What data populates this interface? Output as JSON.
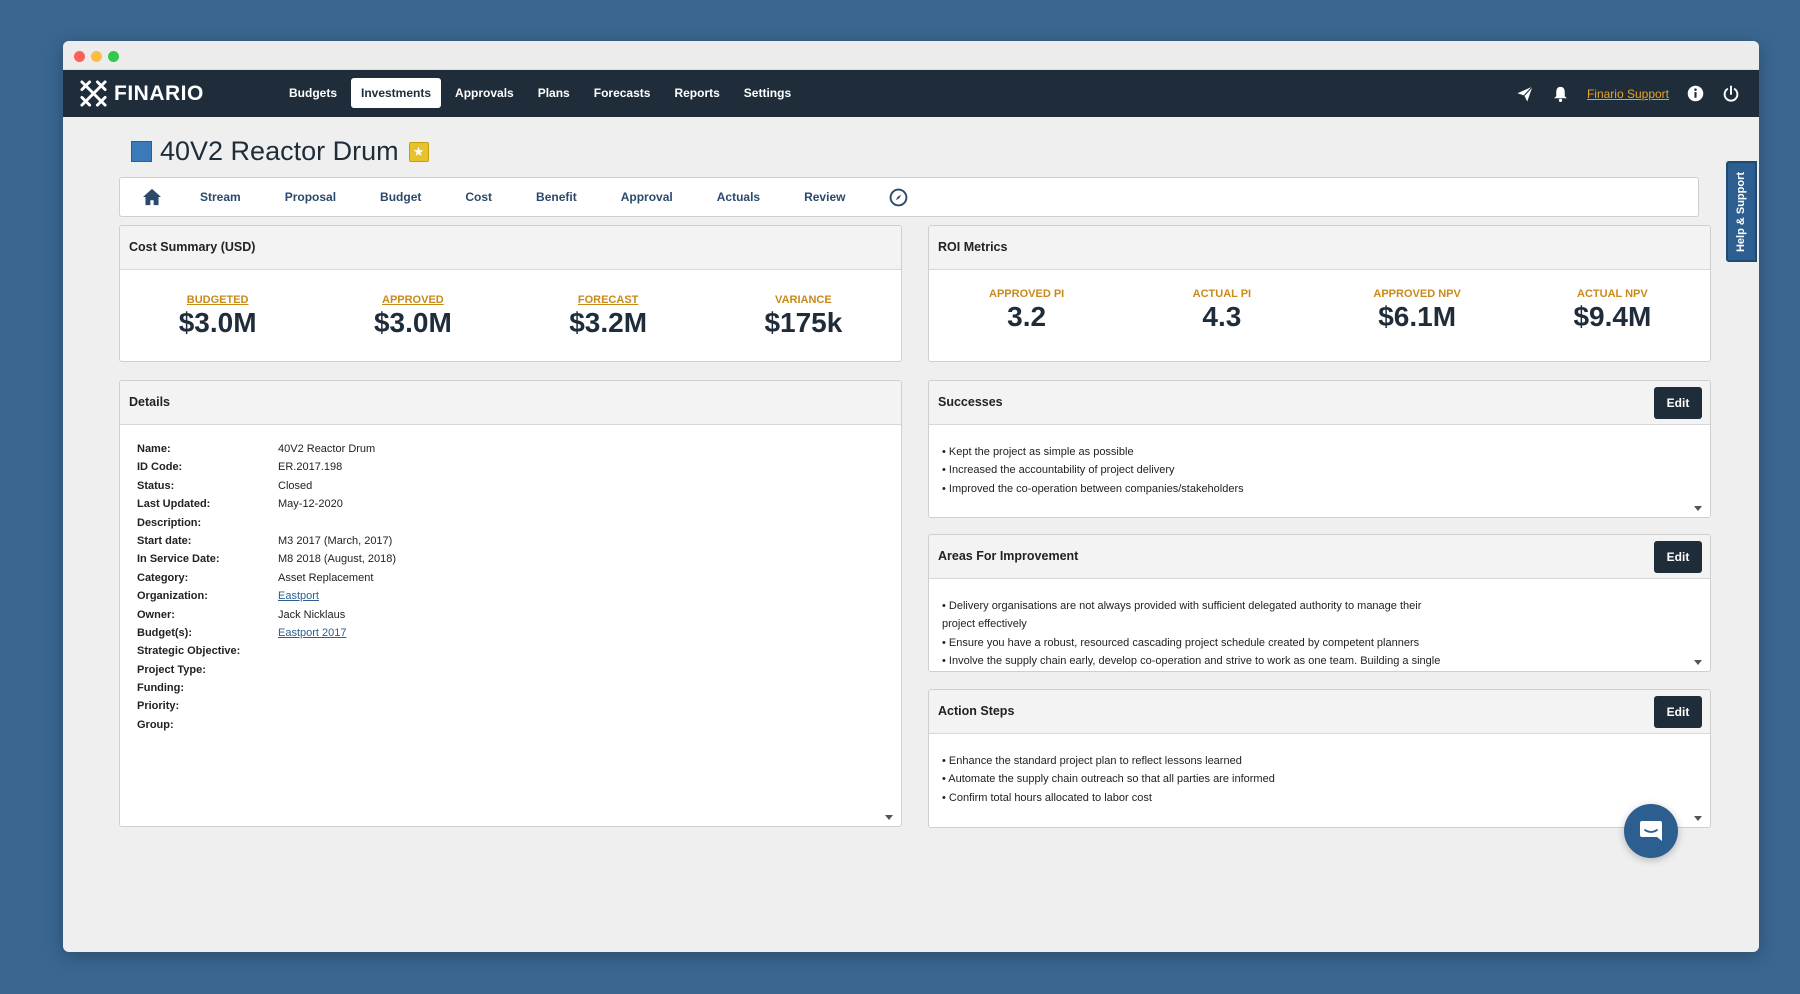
{
  "app": {
    "logo_text": "FINARIO"
  },
  "nav": {
    "items": [
      {
        "label": "Budgets"
      },
      {
        "label": "Investments",
        "active": true
      },
      {
        "label": "Approvals"
      },
      {
        "label": "Plans"
      },
      {
        "label": "Forecasts"
      },
      {
        "label": "Reports"
      },
      {
        "label": "Settings"
      }
    ],
    "support_label": "Finario Support",
    "icons": [
      "send-icon",
      "bell-icon",
      "info-icon",
      "power-icon"
    ]
  },
  "page": {
    "title": "40V2 Reactor Drum"
  },
  "subtabs": [
    "Stream",
    "Proposal",
    "Budget",
    "Cost",
    "Benefit",
    "Approval",
    "Actuals",
    "Review"
  ],
  "cost_summary": {
    "title": "Cost Summary (USD)",
    "metrics": [
      {
        "label": "BUDGETED",
        "value": "$3.0M"
      },
      {
        "label": "APPROVED",
        "value": "$3.0M"
      },
      {
        "label": "FORECAST",
        "value": "$3.2M"
      },
      {
        "label": "VARIANCE",
        "value": "$175k"
      }
    ]
  },
  "roi": {
    "title": "ROI Metrics",
    "metrics": [
      {
        "label": "APPROVED PI",
        "value": "3.2"
      },
      {
        "label": "ACTUAL PI",
        "value": "4.3"
      },
      {
        "label": "APPROVED NPV",
        "value": "$6.1M"
      },
      {
        "label": "ACTUAL NPV",
        "value": "$9.4M"
      }
    ]
  },
  "details": {
    "title": "Details",
    "rows": [
      {
        "label": "Name:",
        "value": "40V2 Reactor Drum"
      },
      {
        "label": "ID Code:",
        "value": "ER.2017.198"
      },
      {
        "label": "Status:",
        "value": "Closed"
      },
      {
        "label": "Last Updated:",
        "value": "May-12-2020"
      },
      {
        "label": "Description:",
        "value": ""
      },
      {
        "label": "Start date:",
        "value": "M3 2017 (March, 2017)"
      },
      {
        "label": "In Service Date:",
        "value": "M8 2018 (August, 2018)"
      },
      {
        "label": "Category:",
        "value": "Asset Replacement"
      },
      {
        "label": "Organization:",
        "value": "Eastport"
      },
      {
        "label": "Owner:",
        "value": "Jack Nicklaus"
      },
      {
        "label": "Budget(s):",
        "value": "Eastport 2017"
      },
      {
        "label": "Strategic Objective:",
        "value": ""
      },
      {
        "label": "Project Type:",
        "value": ""
      },
      {
        "label": "Funding:",
        "value": ""
      },
      {
        "label": "Priority:",
        "value": ""
      },
      {
        "label": "Group:",
        "value": ""
      }
    ]
  },
  "successes": {
    "title": "Successes",
    "edit_label": "Edit",
    "items": [
      "• Kept the project as simple as possible",
      "• Increased the accountability of project delivery",
      "• Improved the co-operation between companies/stakeholders"
    ]
  },
  "improvement": {
    "title": "Areas For Improvement",
    "edit_label": "Edit",
    "items": [
      "• Delivery organisations are not always provided with sufficient delegated authority to manage their",
      "project effectively",
      "• Ensure you have a robust, resourced cascading project schedule created by competent planners",
      "• Involve the supply chain early, develop co-operation and strive to work as one team. Building a single"
    ]
  },
  "actions": {
    "title": "Action Steps",
    "edit_label": "Edit",
    "items": [
      "• Enhance the standard project plan to reflect lessons learned",
      "• Automate the supply chain outreach so that all parties are informed",
      "• Confirm total hours allocated to labor cost"
    ]
  },
  "help_tab_label": "Help & Support",
  "colors": {
    "navbar": "#1f2d3a",
    "accent_orange": "#c98a1a",
    "link_blue": "#2c5f90",
    "background": "#3a6690"
  }
}
